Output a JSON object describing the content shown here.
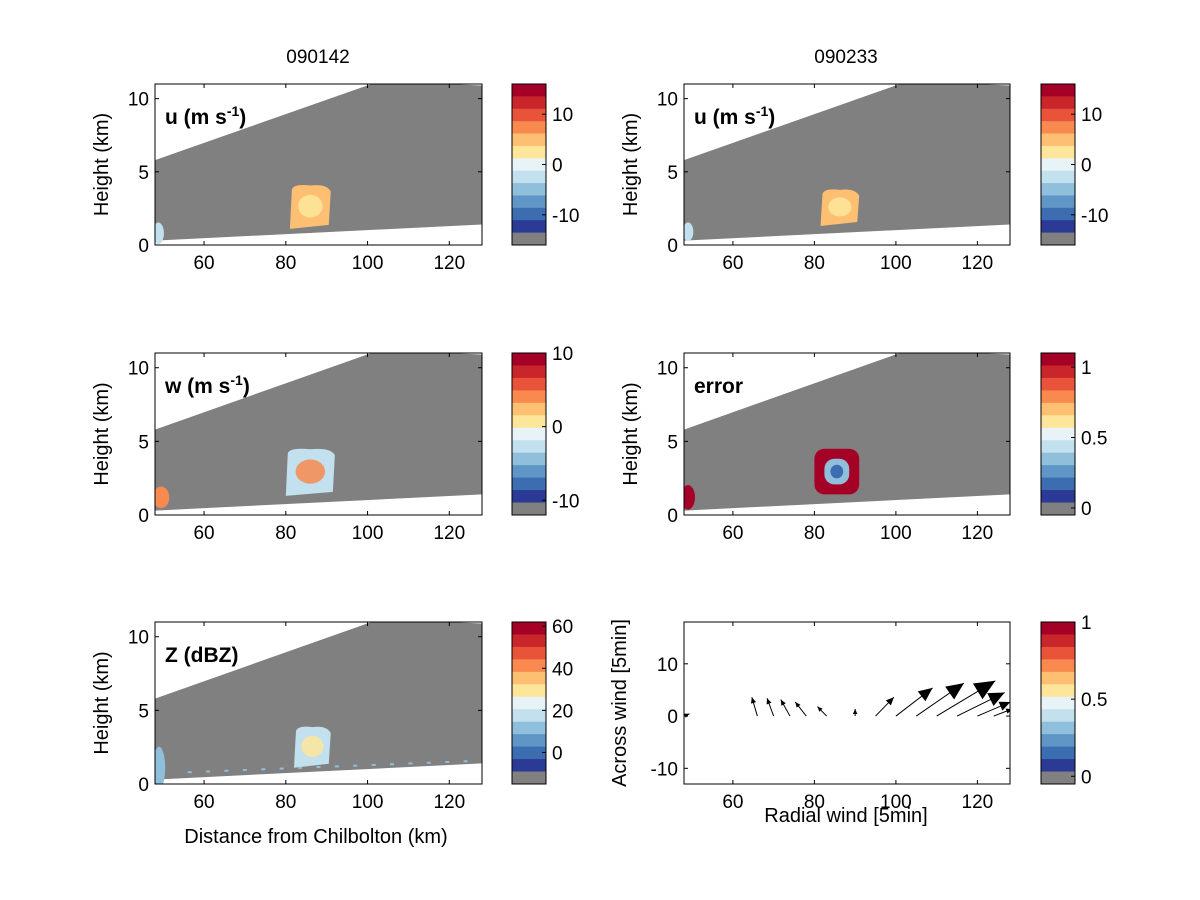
{
  "column_titles": [
    "090142",
    "090233"
  ],
  "colors": {
    "background": "#ffffff",
    "no_data_grey": "#808080",
    "colormap": [
      "#2b3a94",
      "#3b6db0",
      "#5f96c6",
      "#90bfdc",
      "#c2e0ee",
      "#e8f3f8",
      "#fde69a",
      "#fdbf72",
      "#f8894f",
      "#e8533a",
      "#c9262c",
      "#a50026"
    ]
  },
  "chart_data": [
    {
      "id": "u-090142",
      "type": "heatmap",
      "label": "u (m s",
      "label_sup": "-1",
      "label_tail": ")",
      "ylabel": "Height (km)",
      "xlabel": "",
      "xlim": [
        48,
        128
      ],
      "ylim": [
        0,
        11
      ],
      "xticks": [
        "60",
        "80",
        "100",
        "120"
      ],
      "yticks": [
        "0",
        "5",
        "10"
      ],
      "colorbar": {
        "range": [
          -16,
          16
        ],
        "ticks": [
          "10",
          "0",
          "-10"
        ],
        "tick_values": [
          10,
          0,
          -10
        ]
      },
      "features": [
        {
          "kind": "patch",
          "x0": 81,
          "x1": 91,
          "y0": 1.1,
          "y1": 4.2,
          "value": 3,
          "inner": 0
        },
        {
          "kind": "blob",
          "x": 48.8,
          "y": 0.8,
          "rx": 0.9,
          "ry": 0.6,
          "value": -5
        }
      ]
    },
    {
      "id": "u-090233",
      "type": "heatmap",
      "label": "u (m s",
      "label_sup": "-1",
      "label_tail": ")",
      "ylabel": "Height (km)",
      "xlabel": "",
      "xlim": [
        48,
        128
      ],
      "ylim": [
        0,
        11
      ],
      "xticks": [
        "60",
        "80",
        "100",
        "120"
      ],
      "yticks": [
        "0",
        "5",
        "10"
      ],
      "colorbar": {
        "range": [
          -16,
          16
        ],
        "ticks": [
          "10",
          "0",
          "-10"
        ],
        "tick_values": [
          10,
          0,
          -10
        ]
      },
      "features": [
        {
          "kind": "patch",
          "x0": 81.5,
          "x1": 91,
          "y0": 1.3,
          "y1": 3.9,
          "value": 3,
          "inner": 0
        },
        {
          "kind": "blob",
          "x": 49,
          "y": 0.9,
          "rx": 0.8,
          "ry": 0.5,
          "value": -3
        }
      ]
    },
    {
      "id": "w-090142",
      "type": "heatmap",
      "label": "w (m s",
      "label_sup": "-1",
      "label_tail": ")",
      "ylabel": "Height (km)",
      "xlabel": "",
      "xlim": [
        48,
        128
      ],
      "ylim": [
        0,
        11
      ],
      "xticks": [
        "60",
        "80",
        "100",
        "120"
      ],
      "yticks": [
        "0",
        "5",
        "10"
      ],
      "colorbar": {
        "range": [
          -12,
          10
        ],
        "ticks": [
          "10",
          "0",
          "-10"
        ],
        "tick_values": [
          10,
          0,
          -10
        ]
      },
      "features": [
        {
          "kind": "patch",
          "x0": 80,
          "x1": 92,
          "y0": 1.3,
          "y1": 4.6,
          "value": -4,
          "inner": 4
        },
        {
          "kind": "blob",
          "x": 49.5,
          "y": 1.2,
          "rx": 1.5,
          "ry": 0.6,
          "value": 3
        }
      ]
    },
    {
      "id": "error-090233",
      "type": "heatmap",
      "label": "error",
      "label_sup": "",
      "label_tail": "",
      "ylabel": "Height (km)",
      "xlabel": "",
      "xlim": [
        48,
        128
      ],
      "ylim": [
        0,
        11
      ],
      "xticks": [
        "60",
        "80",
        "100",
        "120"
      ],
      "yticks": [
        "0",
        "5",
        "10"
      ],
      "colorbar": {
        "range": [
          -0.05,
          1.1
        ],
        "ticks": [
          "1",
          "0.5",
          "0"
        ],
        "tick_values": [
          1,
          0.5,
          0
        ]
      },
      "features": [
        {
          "kind": "ring",
          "x0": 80,
          "x1": 91,
          "y0": 1.4,
          "y1": 4.5,
          "outer_value": 1.05,
          "inner_value": 0.1
        },
        {
          "kind": "blob",
          "x": 49,
          "y": 1.2,
          "rx": 1.2,
          "ry": 0.7,
          "value": 1.05
        }
      ]
    },
    {
      "id": "z-090142",
      "type": "heatmap",
      "label": "Z (dBZ)",
      "label_sup": "",
      "label_tail": "",
      "ylabel": "Height (km)",
      "xlabel": "Distance from Chilbolton (km)",
      "xlim": [
        48,
        128
      ],
      "ylim": [
        0,
        11
      ],
      "xticks": [
        "60",
        "80",
        "100",
        "120"
      ],
      "yticks": [
        "0",
        "5",
        "10"
      ],
      "colorbar": {
        "range": [
          -15,
          62
        ],
        "ticks": [
          "60",
          "40",
          "20",
          "0"
        ],
        "tick_values": [
          60,
          40,
          20,
          0
        ]
      },
      "features": [
        {
          "kind": "patch",
          "x0": 82,
          "x1": 91,
          "y0": 1.1,
          "y1": 4.0,
          "value": 15,
          "inner": 28
        },
        {
          "kind": "blob",
          "x": 49,
          "y": 1.1,
          "rx": 1.0,
          "ry": 1.3,
          "value": 5
        },
        {
          "kind": "speckle",
          "y": 0.8,
          "value": 5
        }
      ]
    },
    {
      "id": "quiver",
      "type": "scatter",
      "ylabel": "Across wind [5min]",
      "xlabel": "Radial wind [5min]",
      "xlim": [
        48,
        128
      ],
      "ylim": [
        -13,
        18
      ],
      "xticks": [
        "60",
        "80",
        "100",
        "120"
      ],
      "yticks": [
        "-10",
        "0",
        "10"
      ],
      "colorbar": {
        "range": [
          -0.05,
          1.0
        ],
        "ticks": [
          "1",
          "0.5",
          "0"
        ],
        "tick_values": [
          1,
          0.5,
          0
        ]
      },
      "arrows": [
        {
          "x": 48,
          "y": 0,
          "u": 1.5,
          "v": 0.5
        },
        {
          "x": 66,
          "y": 0,
          "u": -1.5,
          "v": 4
        },
        {
          "x": 70,
          "y": 0,
          "u": -1.8,
          "v": 3.8
        },
        {
          "x": 74,
          "y": 0,
          "u": -2.5,
          "v": 3.5
        },
        {
          "x": 78,
          "y": 0,
          "u": -3,
          "v": 3
        },
        {
          "x": 83,
          "y": 0,
          "u": -2.5,
          "v": 2
        },
        {
          "x": 90,
          "y": 0,
          "u": 0,
          "v": 1.5
        },
        {
          "x": 95,
          "y": 0,
          "u": 5,
          "v": 4
        },
        {
          "x": 100,
          "y": 0,
          "u": 10,
          "v": 6
        },
        {
          "x": 105,
          "y": 0,
          "u": 13,
          "v": 7
        },
        {
          "x": 110,
          "y": 0,
          "u": 16,
          "v": 7.5
        },
        {
          "x": 115,
          "y": 0,
          "u": 13,
          "v": 5
        },
        {
          "x": 120,
          "y": 0,
          "u": 9,
          "v": 3
        },
        {
          "x": 124,
          "y": 0,
          "u": 5,
          "v": 1.5
        }
      ]
    }
  ]
}
